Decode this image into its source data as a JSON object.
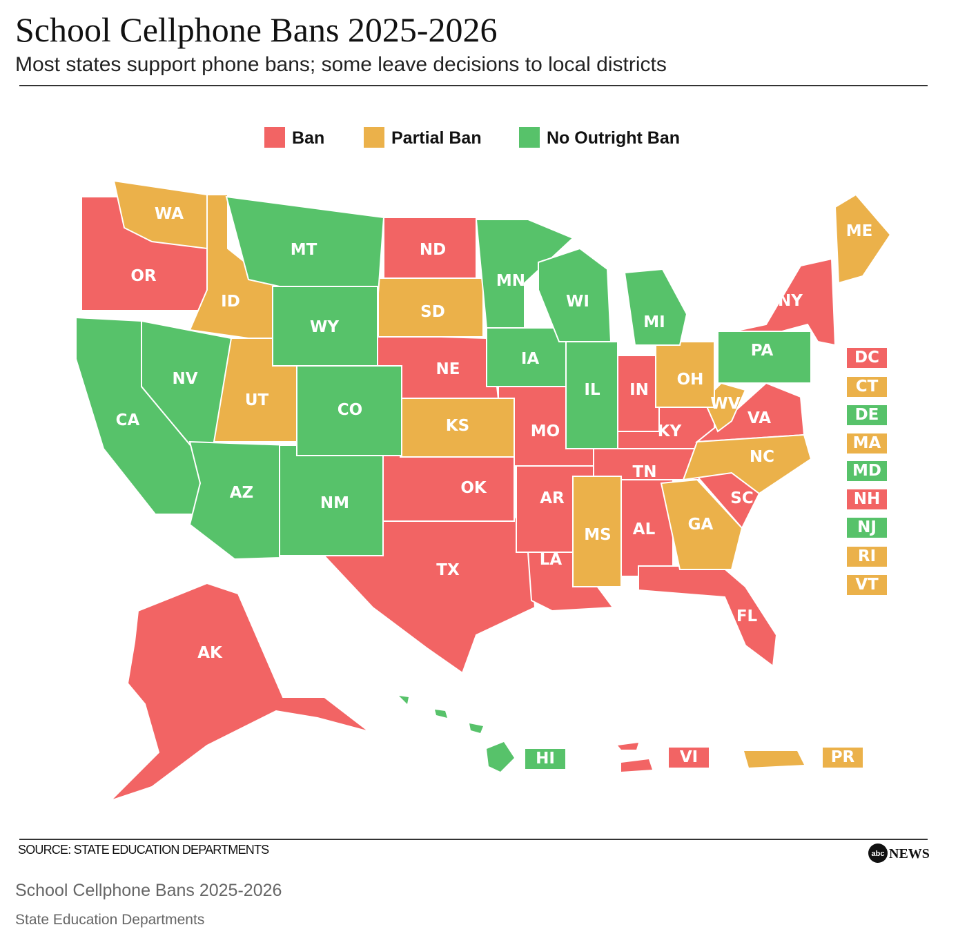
{
  "header": {
    "title": "School Cellphone Bans 2025-2026",
    "subtitle": "Most states support phone bans; some leave decisions to local districts"
  },
  "legend": [
    {
      "name": "Ban",
      "color": "#f26464",
      "states": [
        "OR",
        "ND",
        "NE",
        "MO",
        "TX",
        "OK",
        "AR",
        "LA",
        "AL",
        "TN",
        "KY",
        "IN",
        "VA",
        "SC",
        "FL",
        "NY",
        "AK"
      ],
      "boxed": [
        "DC",
        "NH",
        "VI"
      ]
    },
    {
      "name": "Partial Ban",
      "color": "#ebb14a",
      "states": [
        "WA",
        "ID",
        "UT",
        "SD",
        "KS",
        "MS",
        "GA",
        "NC",
        "WV",
        "OH",
        "ME"
      ],
      "boxed": [
        "CT",
        "MA",
        "RI",
        "VT",
        "PR"
      ]
    },
    {
      "name": "No Outright Ban",
      "color": "#57c26a",
      "states": [
        "MT",
        "WY",
        "CA",
        "NV",
        "AZ",
        "NM",
        "CO",
        "MN",
        "IA",
        "WI",
        "IL",
        "MI",
        "PA"
      ],
      "boxed": [
        "DE",
        "MD",
        "NJ",
        "HI"
      ]
    }
  ],
  "footer": {
    "source": "SOURCE: STATE EDUCATION DEPARTMENTS",
    "logo_mark": "abc",
    "logo_text": "NEWS"
  },
  "caption": {
    "title": "School Cellphone Bans 2025-2026",
    "credit": "State Education Departments"
  }
}
